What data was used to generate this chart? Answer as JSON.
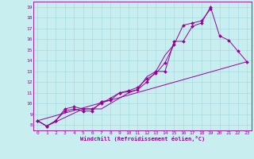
{
  "title": "",
  "xlabel": "Windchill (Refroidissement éolien,°C)",
  "ylabel": "",
  "bg_color": "#c8eef0",
  "line_color": "#990099",
  "grid_color": "#a8dce0",
  "xlim": [
    -0.5,
    23.5
  ],
  "ylim": [
    7.5,
    19.5
  ],
  "xticks": [
    0,
    1,
    2,
    3,
    4,
    5,
    6,
    7,
    8,
    9,
    10,
    11,
    12,
    13,
    14,
    15,
    16,
    17,
    18,
    19,
    20,
    21,
    22,
    23
  ],
  "yticks": [
    8,
    9,
    10,
    11,
    12,
    13,
    14,
    15,
    16,
    17,
    18,
    19
  ],
  "series": [
    {
      "x": [
        0,
        1,
        2,
        3,
        4,
        5,
        6,
        7,
        8,
        9,
        10,
        11,
        12,
        13,
        14,
        15,
        16,
        17,
        18,
        19,
        20,
        21,
        22,
        23
      ],
      "y": [
        8.4,
        7.9,
        8.4,
        9.5,
        9.7,
        9.5,
        9.5,
        10.0,
        10.5,
        11.0,
        11.1,
        11.3,
        12.0,
        13.0,
        13.0,
        15.8,
        15.8,
        17.2,
        17.5,
        19.0,
        16.3,
        15.9,
        14.9,
        13.9
      ],
      "marker": true
    },
    {
      "x": [
        0,
        1,
        2,
        3,
        4,
        5,
        6,
        7,
        8,
        9,
        10,
        11,
        12,
        13,
        14,
        15,
        16,
        17,
        18,
        19
      ],
      "y": [
        8.4,
        7.9,
        8.4,
        9.3,
        9.5,
        9.3,
        9.3,
        10.2,
        10.3,
        11.0,
        11.2,
        11.5,
        12.3,
        12.8,
        13.8,
        15.5,
        17.3,
        17.5,
        17.7,
        18.8
      ],
      "marker": true
    },
    {
      "x": [
        0,
        1,
        5,
        6,
        7,
        8,
        9,
        10,
        11,
        12,
        13,
        14,
        15
      ],
      "y": [
        8.4,
        7.9,
        9.5,
        9.5,
        9.5,
        10.0,
        10.5,
        11.0,
        11.3,
        12.5,
        13.0,
        14.5,
        15.5
      ],
      "marker": false
    },
    {
      "x": [
        0,
        23
      ],
      "y": [
        8.4,
        13.9
      ],
      "marker": false
    }
  ]
}
